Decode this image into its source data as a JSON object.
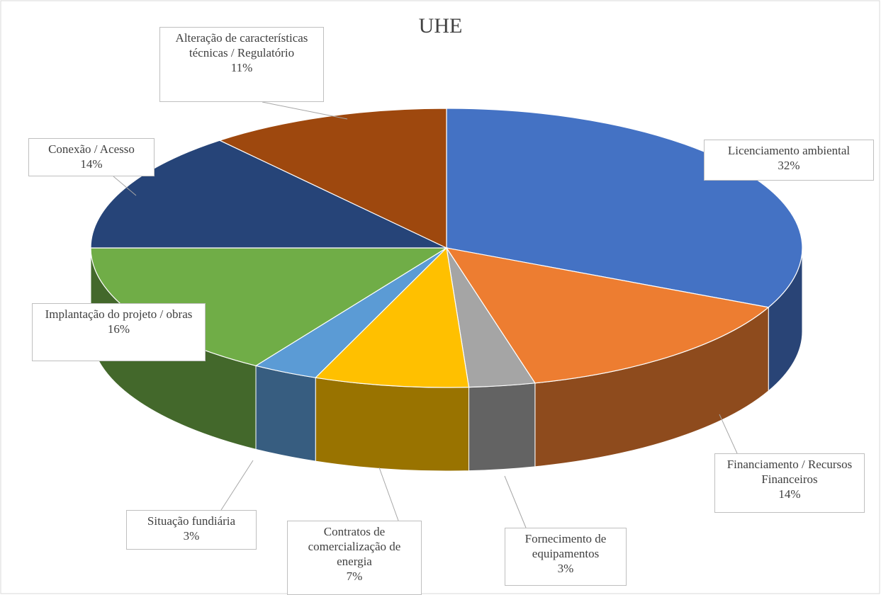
{
  "chart_data": {
    "type": "pie3d",
    "title": "UHE",
    "categories": [
      "Licenciamento ambiental",
      "Financiamento / Recursos Financeiros",
      "Fornecimento de equipamentos",
      "Contratos de comercialização de energia",
      "Situação fundiária",
      "Implantação do projeto / obras",
      "Conexão / Acesso",
      "Alteração de características técnicas / Regulatório"
    ],
    "values": [
      32,
      14,
      3,
      7,
      3,
      16,
      14,
      11
    ],
    "value_labels": [
      "32%",
      "14%",
      "3%",
      "7%",
      "3%",
      "16%",
      "14%",
      "11%"
    ],
    "colors": [
      "#4472c4",
      "#ed7d31",
      "#a5a5a5",
      "#ffc000",
      "#5b9bd5",
      "#70ad47",
      "#264478",
      "#9e480e"
    ]
  }
}
